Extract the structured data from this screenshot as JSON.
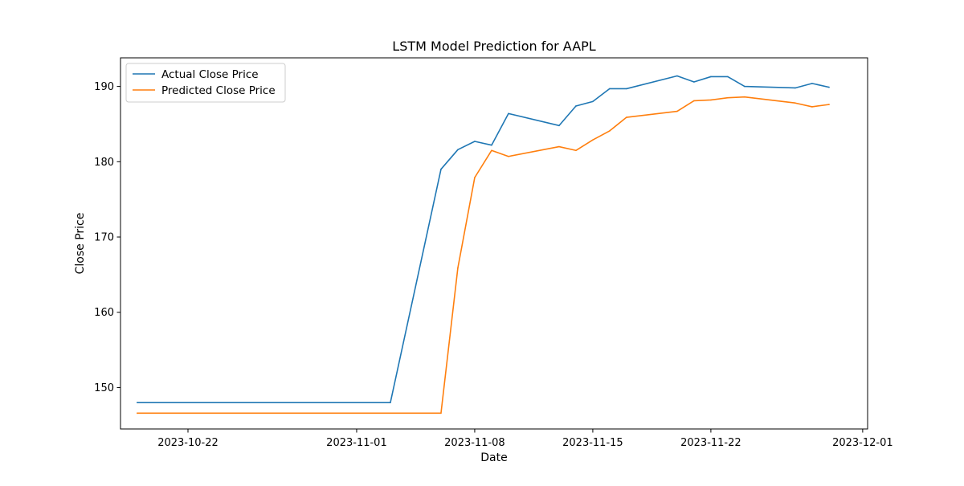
{
  "chart_data": {
    "type": "line",
    "title": "LSTM Model Prediction for AAPL",
    "xlabel": "Date",
    "ylabel": "Close Price",
    "xlim": [
      "2023-10-18T00:00",
      "2023-12-01T07:00"
    ],
    "ylim": [
      144.5,
      193.8
    ],
    "x_ticks": [
      "2023-10-22",
      "2023-11-01",
      "2023-11-08",
      "2023-11-15",
      "2023-11-22",
      "2023-12-01"
    ],
    "y_ticks": [
      150,
      160,
      170,
      180,
      190
    ],
    "grid": false,
    "legend_position": "top-left",
    "series": [
      {
        "name": "Actual Close Price",
        "color": "#1f77b4",
        "points": [
          [
            "2023-10-19",
            148.0
          ],
          [
            "2023-11-03",
            148.0
          ],
          [
            "2023-11-06",
            179.0
          ],
          [
            "2023-11-07",
            181.6
          ],
          [
            "2023-11-08",
            182.7
          ],
          [
            "2023-11-09",
            182.2
          ],
          [
            "2023-11-10",
            186.4
          ],
          [
            "2023-11-13",
            184.8
          ],
          [
            "2023-11-14",
            187.4
          ],
          [
            "2023-11-15",
            188.0
          ],
          [
            "2023-11-16",
            189.7
          ],
          [
            "2023-11-17",
            189.7
          ],
          [
            "2023-11-20",
            191.4
          ],
          [
            "2023-11-21",
            190.6
          ],
          [
            "2023-11-22",
            191.3
          ],
          [
            "2023-11-23",
            191.3
          ],
          [
            "2023-11-24",
            190.0
          ],
          [
            "2023-11-27",
            189.8
          ],
          [
            "2023-11-28",
            190.4
          ],
          [
            "2023-11-29",
            189.9
          ]
        ]
      },
      {
        "name": "Predicted Close Price",
        "color": "#ff7f0e",
        "points": [
          [
            "2023-10-19",
            146.6
          ],
          [
            "2023-11-06",
            146.6
          ],
          [
            "2023-11-07",
            165.9
          ],
          [
            "2023-11-08",
            177.9
          ],
          [
            "2023-11-09",
            181.5
          ],
          [
            "2023-11-10",
            180.7
          ],
          [
            "2023-11-13",
            182.0
          ],
          [
            "2023-11-14",
            181.5
          ],
          [
            "2023-11-15",
            182.9
          ],
          [
            "2023-11-16",
            184.1
          ],
          [
            "2023-11-17",
            185.9
          ],
          [
            "2023-11-20",
            186.7
          ],
          [
            "2023-11-21",
            188.1
          ],
          [
            "2023-11-22",
            188.2
          ],
          [
            "2023-11-23",
            188.5
          ],
          [
            "2023-11-24",
            188.6
          ],
          [
            "2023-11-27",
            187.8
          ],
          [
            "2023-11-28",
            187.3
          ],
          [
            "2023-11-29",
            187.6
          ]
        ]
      }
    ]
  }
}
